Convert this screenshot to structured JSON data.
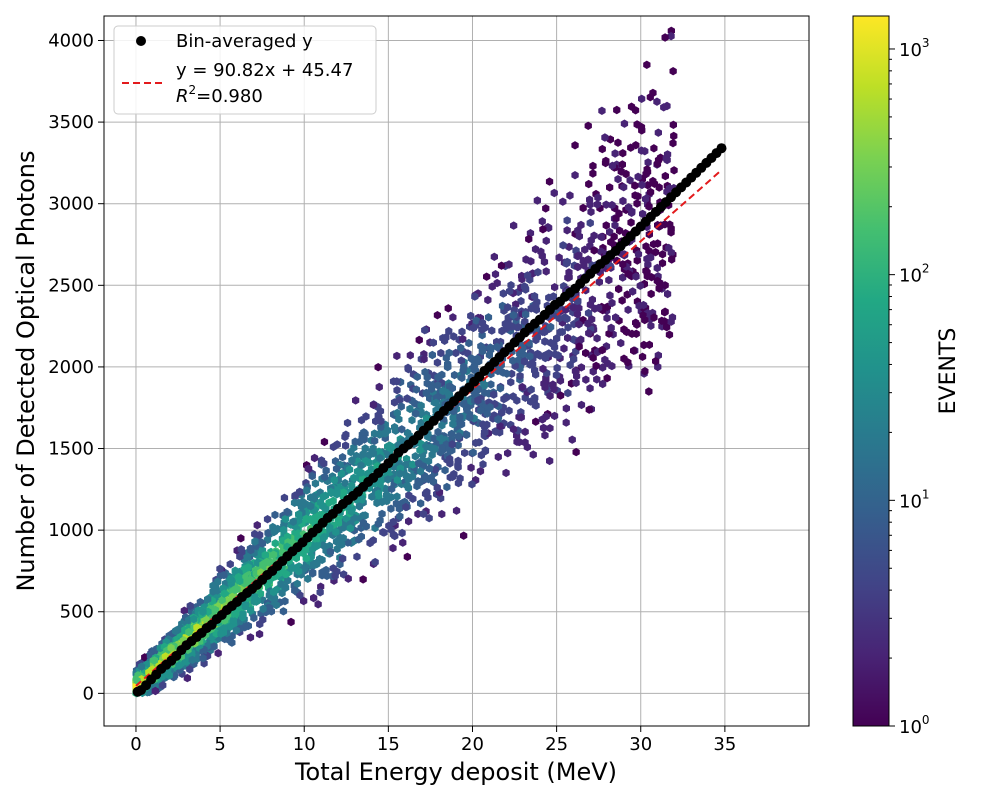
{
  "chart_data": {
    "type": "scatter",
    "title": "",
    "xlabel": "Total Energy deposit (MeV)",
    "ylabel": "Number of Detected Optical Photons",
    "xlim": [
      -1.9,
      40
    ],
    "ylim": [
      -200,
      4150
    ],
    "xticks": [
      0,
      5,
      10,
      15,
      20,
      25,
      30,
      35
    ],
    "yticks": [
      0,
      500,
      1000,
      1500,
      2000,
      2500,
      3000,
      3500,
      4000
    ],
    "grid": true,
    "legend": {
      "position": "top-left",
      "points_label": "Bin-averaged y",
      "fit_label": "y = 90.82x + 45.47",
      "r2_prefix": "R",
      "r2_exp": "2",
      "r2_value": "=0.980"
    },
    "fit": {
      "slope": 90.82,
      "intercept": 45.47,
      "x_range": [
        0,
        34.7
      ],
      "color": "#e31a1c"
    },
    "colorbar": {
      "label": "EVENTS",
      "scale": "log",
      "min": 1,
      "max": 1400,
      "ticks": [
        {
          "value": 1,
          "base": "10",
          "exp": "0"
        },
        {
          "value": 10,
          "base": "10",
          "exp": "1"
        },
        {
          "value": 100,
          "base": "10",
          "exp": "2"
        },
        {
          "value": 1000,
          "base": "10",
          "exp": "3"
        }
      ]
    },
    "hexbin_density_description": "log-scaled event density around fit line",
    "series": [
      {
        "name": "Bin-averaged y",
        "color": "#000000",
        "points": [
          [
            0.1,
            10
          ],
          [
            0.3,
            20
          ],
          [
            0.6,
            50
          ],
          [
            0.9,
            85
          ],
          [
            1.2,
            115
          ],
          [
            1.5,
            150
          ],
          [
            1.8,
            175
          ],
          [
            2.1,
            200
          ],
          [
            2.4,
            230
          ],
          [
            2.7,
            265
          ],
          [
            3.0,
            295
          ],
          [
            3.3,
            320
          ],
          [
            3.6,
            345
          ],
          [
            3.9,
            370
          ],
          [
            4.2,
            400
          ],
          [
            4.5,
            420
          ],
          [
            4.8,
            455
          ],
          [
            5.1,
            480
          ],
          [
            5.4,
            510
          ],
          [
            5.7,
            535
          ],
          [
            6.0,
            560
          ],
          [
            6.3,
            590
          ],
          [
            6.6,
            615
          ],
          [
            6.9,
            640
          ],
          [
            7.2,
            665
          ],
          [
            7.5,
            695
          ],
          [
            7.8,
            725
          ],
          [
            8.1,
            750
          ],
          [
            8.4,
            780
          ],
          [
            8.7,
            810
          ],
          [
            9.0,
            840
          ],
          [
            9.3,
            870
          ],
          [
            9.6,
            895
          ],
          [
            9.9,
            925
          ],
          [
            10.2,
            955
          ],
          [
            10.5,
            985
          ],
          [
            10.8,
            1010
          ],
          [
            11.1,
            1045
          ],
          [
            11.4,
            1075
          ],
          [
            11.7,
            1100
          ],
          [
            12.0,
            1130
          ],
          [
            12.3,
            1160
          ],
          [
            12.6,
            1185
          ],
          [
            12.9,
            1210
          ],
          [
            13.2,
            1235
          ],
          [
            13.5,
            1265
          ],
          [
            13.8,
            1295
          ],
          [
            14.1,
            1320
          ],
          [
            14.4,
            1350
          ],
          [
            14.7,
            1380
          ],
          [
            15.0,
            1410
          ],
          [
            15.3,
            1440
          ],
          [
            15.6,
            1475
          ],
          [
            15.9,
            1500
          ],
          [
            16.2,
            1525
          ],
          [
            16.5,
            1550
          ],
          [
            16.8,
            1580
          ],
          [
            17.1,
            1610
          ],
          [
            17.4,
            1640
          ],
          [
            17.7,
            1670
          ],
          [
            18.0,
            1700
          ],
          [
            18.3,
            1730
          ],
          [
            18.6,
            1760
          ],
          [
            18.9,
            1790
          ],
          [
            19.2,
            1820
          ],
          [
            19.5,
            1850
          ],
          [
            19.8,
            1875
          ],
          [
            20.1,
            1910
          ],
          [
            20.4,
            1940
          ],
          [
            20.7,
            1975
          ],
          [
            21.0,
            2000
          ],
          [
            21.3,
            2030
          ],
          [
            21.6,
            2060
          ],
          [
            21.9,
            2090
          ],
          [
            22.2,
            2120
          ],
          [
            22.5,
            2150
          ],
          [
            22.8,
            2180
          ],
          [
            23.1,
            2210
          ],
          [
            23.4,
            2240
          ],
          [
            23.7,
            2265
          ],
          [
            24.0,
            2290
          ],
          [
            24.3,
            2320
          ],
          [
            24.6,
            2350
          ],
          [
            24.9,
            2380
          ],
          [
            25.2,
            2400
          ],
          [
            25.5,
            2430
          ],
          [
            25.8,
            2455
          ],
          [
            26.1,
            2480
          ],
          [
            26.4,
            2510
          ],
          [
            26.7,
            2540
          ],
          [
            27.0,
            2570
          ],
          [
            27.3,
            2600
          ],
          [
            27.6,
            2630
          ],
          [
            27.9,
            2655
          ],
          [
            28.2,
            2685
          ],
          [
            28.5,
            2710
          ],
          [
            28.8,
            2740
          ],
          [
            29.1,
            2770
          ],
          [
            29.4,
            2800
          ],
          [
            29.7,
            2830
          ],
          [
            30.0,
            2860
          ],
          [
            30.3,
            2890
          ],
          [
            30.6,
            2920
          ],
          [
            30.9,
            2950
          ],
          [
            31.2,
            2980
          ],
          [
            31.5,
            3010
          ],
          [
            31.8,
            3040
          ],
          [
            32.1,
            3070
          ],
          [
            32.4,
            3100
          ],
          [
            32.7,
            3130
          ],
          [
            33.0,
            3160
          ],
          [
            33.3,
            3190
          ],
          [
            33.6,
            3220
          ],
          [
            33.9,
            3250
          ],
          [
            34.2,
            3280
          ],
          [
            34.5,
            3310
          ],
          [
            34.8,
            3340
          ]
        ]
      }
    ]
  }
}
